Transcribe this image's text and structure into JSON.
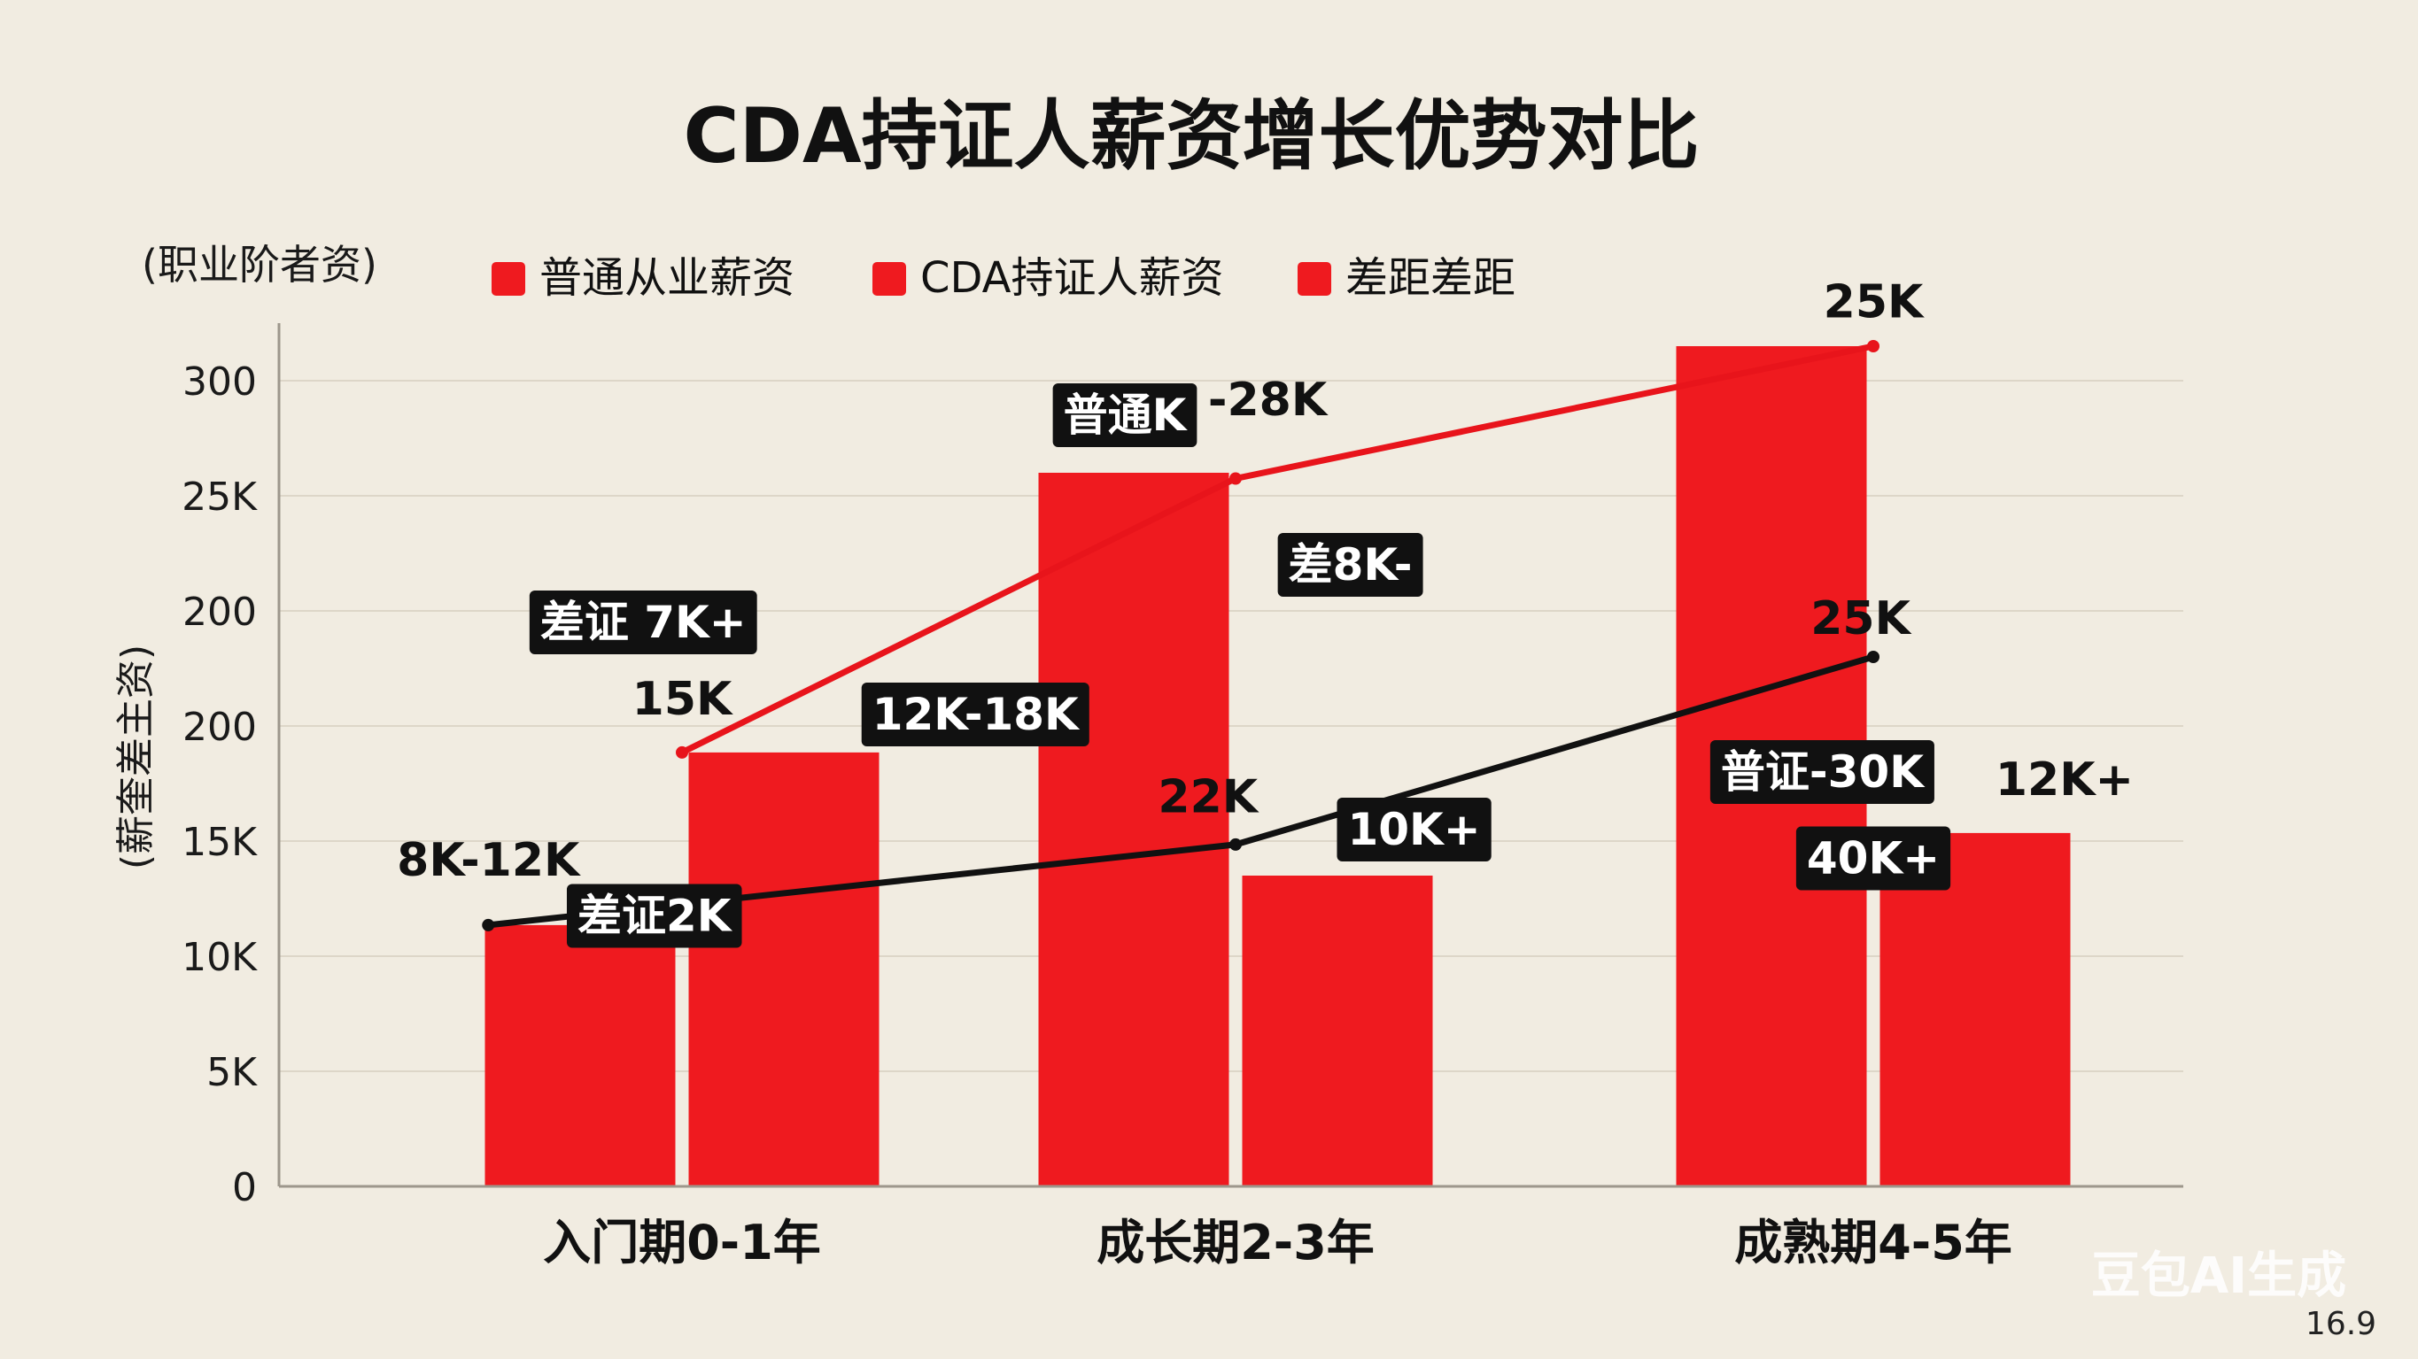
{
  "chart_data": {
    "type": "bar",
    "title": "CDA持证人薪资增长优势对比",
    "ylabel_top": "(职业阶者资)",
    "ylabel_side": "(薪奎差主资)",
    "y_ticks": [
      "0",
      "5K",
      "10K",
      "15K",
      "200",
      "200",
      "25K",
      "300"
    ],
    "categories": [
      "入门期0-1年",
      "成长期2-3年",
      "成熟期4-5年"
    ],
    "legend": [
      "普通从业薪资",
      "CDA持证人薪资",
      "差距差距"
    ],
    "ylim": [
      0,
      7
    ],
    "bars": [
      {
        "category": 0,
        "slot": 0,
        "value": 2.27
      },
      {
        "category": 0,
        "slot": 1,
        "value": 3.77
      },
      {
        "category": 1,
        "slot": 0,
        "value": 6.2
      },
      {
        "category": 1,
        "slot": 1,
        "value": 2.7
      },
      {
        "category": 2,
        "slot": 0,
        "value": 7.3
      },
      {
        "category": 2,
        "slot": 1,
        "value": 3.07
      }
    ],
    "lines": [
      {
        "color": "#e8141b",
        "points": [
          [
            0,
            3.77
          ],
          [
            1,
            6.15
          ],
          [
            2,
            7.3
          ]
        ]
      },
      {
        "color": "#111111",
        "points": [
          [
            -0.35,
            2.27
          ],
          [
            1,
            2.97
          ],
          [
            2,
            4.6
          ]
        ]
      }
    ],
    "labels": [
      {
        "text": "15K",
        "x": 0.0,
        "y": 4.1
      },
      {
        "text": "8K-12K",
        "x": -0.35,
        "y": 2.7
      },
      {
        "text": "-28K",
        "x": 1.05,
        "y": 6.7
      },
      {
        "text": "22K",
        "x": 0.95,
        "y": 3.25
      },
      {
        "text": "25K",
        "x": 2.0,
        "y": 7.55
      },
      {
        "text": "25K",
        "x": 1.98,
        "y": 4.8
      },
      {
        "text": "12K+",
        "x": 2.3,
        "y": 3.4
      }
    ],
    "tags": [
      {
        "text": "差证 7K+",
        "x": -0.07,
        "y": 4.9
      },
      {
        "text": "12K-18K",
        "x": 0.53,
        "y": 4.1
      },
      {
        "text": "普通K",
        "x": 0.8,
        "y": 6.7
      },
      {
        "text": "差8K-",
        "x": 1.18,
        "y": 5.4
      },
      {
        "text": "10K+",
        "x": 1.28,
        "y": 3.1
      },
      {
        "text": "差证2K",
        "x": -0.05,
        "y": 2.35
      },
      {
        "text": "普证-30K",
        "x": 1.92,
        "y": 3.6
      },
      {
        "text": "40K+",
        "x": 2.0,
        "y": 2.85
      }
    ]
  },
  "watermark": "豆包AI生成",
  "aspect_ratio": "16.9",
  "colors": {
    "bar": "#ef1a1f",
    "background": "#f1ece1"
  }
}
